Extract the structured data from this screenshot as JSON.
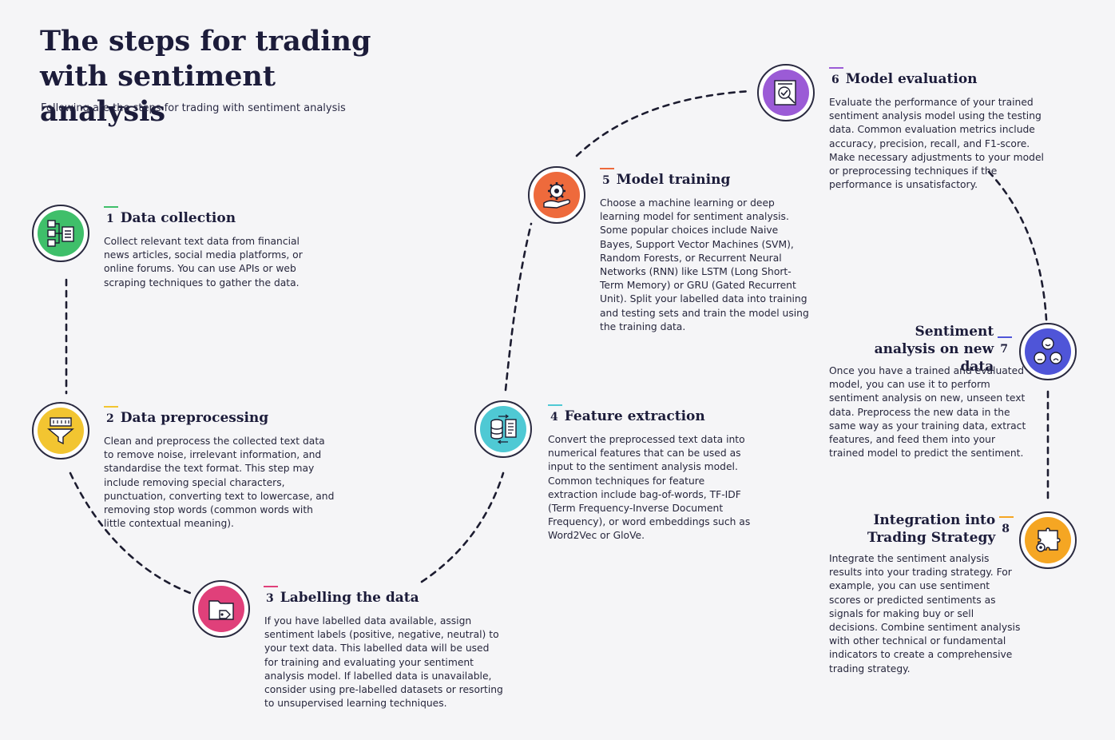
{
  "title": "The steps for trading with sentiment analysis",
  "subtitle": "Following are the steps for trading with sentiment analysis",
  "steps": [
    {
      "number": "1",
      "heading": "Data collection",
      "description": "Collect relevant text data from financial news articles, social media platforms, or online forums. You can use APIs or web scraping techniques to gather the data.",
      "icon": "data-structure-icon",
      "color": "#3fbf6a"
    },
    {
      "number": "2",
      "heading": "Data preprocessing",
      "description": "Clean and preprocess the collected text data to remove noise, irrelevant information, and standardise the text format. This step may include removing special characters, punctuation, converting text to lowercase, and removing stop words (common words with little contextual meaning).",
      "icon": "funnel-icon",
      "color": "#f2c531"
    },
    {
      "number": "3",
      "heading": "Labelling the data",
      "description": "If you have labelled data available, assign sentiment labels (positive, negative, neutral) to your text data. This labelled data will be used for training and evaluating your sentiment analysis model. If labelled data is unavailable, consider using pre-labelled datasets or resorting to unsupervised learning techniques.",
      "icon": "folder-tag-icon",
      "color": "#e0407a"
    },
    {
      "number": "4",
      "heading": "Feature extraction",
      "description": "Convert the preprocessed text data into numerical features that can be used as input to the sentiment analysis model. Common techniques for feature extraction include bag-of-words, TF-IDF (Term Frequency-Inverse Document Frequency), or word embeddings such as Word2Vec or GloVe.",
      "icon": "database-document-icon",
      "color": "#4fc9d4"
    },
    {
      "number": "5",
      "heading": "Model training",
      "description": "Choose a machine learning or deep learning model for sentiment analysis. Some popular choices include Naive Bayes, Support Vector Machines (SVM), Random Forests, or Recurrent Neural Networks (RNN) like LSTM (Long Short-Term Memory) or GRU (Gated Recurrent Unit). Split your labelled data into training and testing sets and train the model using the training data.",
      "icon": "gear-hand-icon",
      "color": "#ee6a3c"
    },
    {
      "number": "6",
      "heading": "Model evaluation",
      "description": "Evaluate the performance of your trained sentiment analysis model using the testing data. Common evaluation metrics include accuracy, precision, recall, and F1-score. Make necessary adjustments to your model or preprocessing techniques if the performance is unsatisfactory.",
      "icon": "magnifier-report-icon",
      "color": "#9b5bd6"
    },
    {
      "number": "7",
      "heading": "Sentiment analysis on new data",
      "description": "Once you have a trained and evaluated model, you can use it to perform sentiment analysis on new, unseen text data. Preprocess the new data in the same way as your training data, extract features, and feed them into your trained model to predict the sentiment.",
      "icon": "emotion-faces-icon",
      "color": "#4f55d8"
    },
    {
      "number": "8",
      "heading": "Integration into Trading Strategy",
      "description": "Integrate the sentiment analysis results into your trading strategy. For example, you can use sentiment scores or predicted sentiments as signals for making buy or sell decisions. Combine sentiment analysis with other technical or fundamental indicators to create a comprehensive trading strategy.",
      "icon": "puzzle-gear-icon",
      "color": "#f5a623"
    }
  ]
}
